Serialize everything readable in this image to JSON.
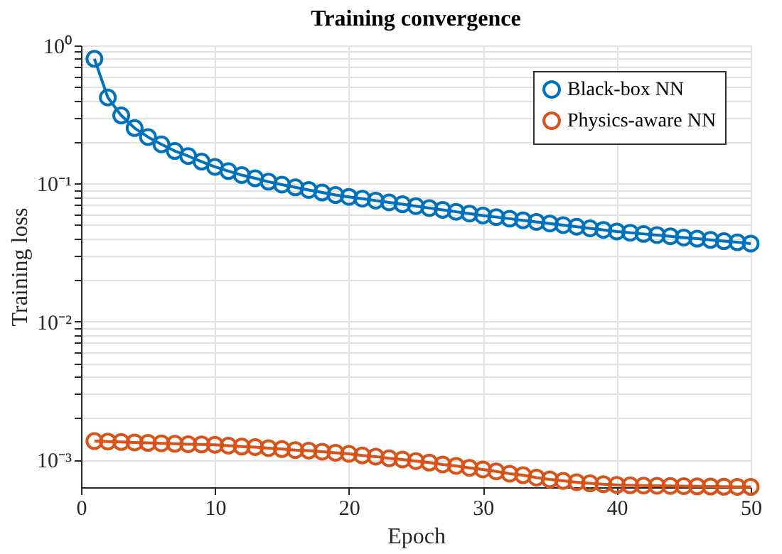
{
  "chart_data": {
    "type": "line",
    "title": "Training convergence",
    "xlabel": "Epoch",
    "ylabel": "Training loss",
    "x": [
      1,
      2,
      3,
      4,
      5,
      6,
      7,
      8,
      9,
      10,
      11,
      12,
      13,
      14,
      15,
      16,
      17,
      18,
      19,
      20,
      21,
      22,
      23,
      24,
      25,
      26,
      27,
      28,
      29,
      30,
      31,
      32,
      33,
      34,
      35,
      36,
      37,
      38,
      39,
      40,
      41,
      42,
      43,
      44,
      45,
      46,
      47,
      48,
      49,
      50
    ],
    "series": [
      {
        "name": "Black-box NN",
        "color": "#0072bd",
        "values": [
          0.8,
          0.42,
          0.311,
          0.252,
          0.217,
          0.192,
          0.172,
          0.158,
          0.144,
          0.132,
          0.123,
          0.115,
          0.109,
          0.103,
          0.098,
          0.0937,
          0.0897,
          0.086,
          0.0825,
          0.08,
          0.0776,
          0.0752,
          0.0729,
          0.0707,
          0.0685,
          0.0664,
          0.0644,
          0.0624,
          0.0605,
          0.0586,
          0.0571,
          0.0556,
          0.0541,
          0.0527,
          0.0513,
          0.0499,
          0.0486,
          0.0473,
          0.0461,
          0.0449,
          0.044,
          0.0431,
          0.0423,
          0.0414,
          0.0406,
          0.0398,
          0.039,
          0.0382,
          0.0375,
          0.0367
        ]
      },
      {
        "name": "Physics-aware NN",
        "color": "#d95319",
        "values": [
          0.00136,
          0.00135,
          0.00134,
          0.00133,
          0.00132,
          0.00131,
          0.0013,
          0.00129,
          0.001285,
          0.00128,
          0.00126,
          0.00124,
          0.00123,
          0.00121,
          0.00119,
          0.00117,
          0.00116,
          0.00114,
          0.00112,
          0.0011,
          0.00107,
          0.00105,
          0.00102,
          0.001,
          0.000975,
          0.00095,
          0.00092,
          0.0009,
          0.00087,
          0.000847,
          0.00082,
          0.00079,
          0.00077,
          0.00074,
          0.000717,
          0.0007,
          0.000685,
          0.000672,
          0.000662,
          0.000654,
          0.00065,
          0.000647,
          0.000645,
          0.000643,
          0.000641,
          0.000639,
          0.000637,
          0.000635,
          0.000634,
          0.000633
        ]
      }
    ],
    "xlim": [
      0,
      50
    ],
    "xticks": [
      0,
      10,
      20,
      30,
      40,
      50
    ],
    "ylim": [
      0.00063,
      1
    ],
    "log": "y",
    "yticks": [
      {
        "value": 0.001,
        "label": "10⁻³"
      },
      {
        "value": 0.01,
        "label": "10⁻²"
      },
      {
        "value": 0.1,
        "label": "10⁻¹"
      },
      {
        "value": 1,
        "label": "10⁰"
      },
      {
        "value": 0.002,
        "label": null
      },
      {
        "value": 0.003,
        "label": null
      },
      {
        "value": 0.004,
        "label": null
      },
      {
        "value": 0.005,
        "label": null
      },
      {
        "value": 0.006,
        "label": null
      },
      {
        "value": 0.007,
        "label": null
      },
      {
        "value": 0.008,
        "label": null
      },
      {
        "value": 0.009,
        "label": null
      },
      {
        "value": 0.02,
        "label": null
      },
      {
        "value": 0.03,
        "label": null
      },
      {
        "value": 0.04,
        "label": null
      },
      {
        "value": 0.05,
        "label": null
      },
      {
        "value": 0.06,
        "label": null
      },
      {
        "value": 0.07,
        "label": null
      },
      {
        "value": 0.08,
        "label": null
      },
      {
        "value": 0.09,
        "label": null
      },
      {
        "value": 0.2,
        "label": null
      },
      {
        "value": 0.3,
        "label": null
      },
      {
        "value": 0.4,
        "label": null
      },
      {
        "value": 0.5,
        "label": null
      },
      {
        "value": 0.6,
        "label": null
      },
      {
        "value": 0.7,
        "label": null
      },
      {
        "value": 0.8,
        "label": null
      },
      {
        "value": 0.9,
        "label": null
      }
    ],
    "grid": true,
    "legend": "top right",
    "marker": "circle",
    "line_style": "solid"
  }
}
